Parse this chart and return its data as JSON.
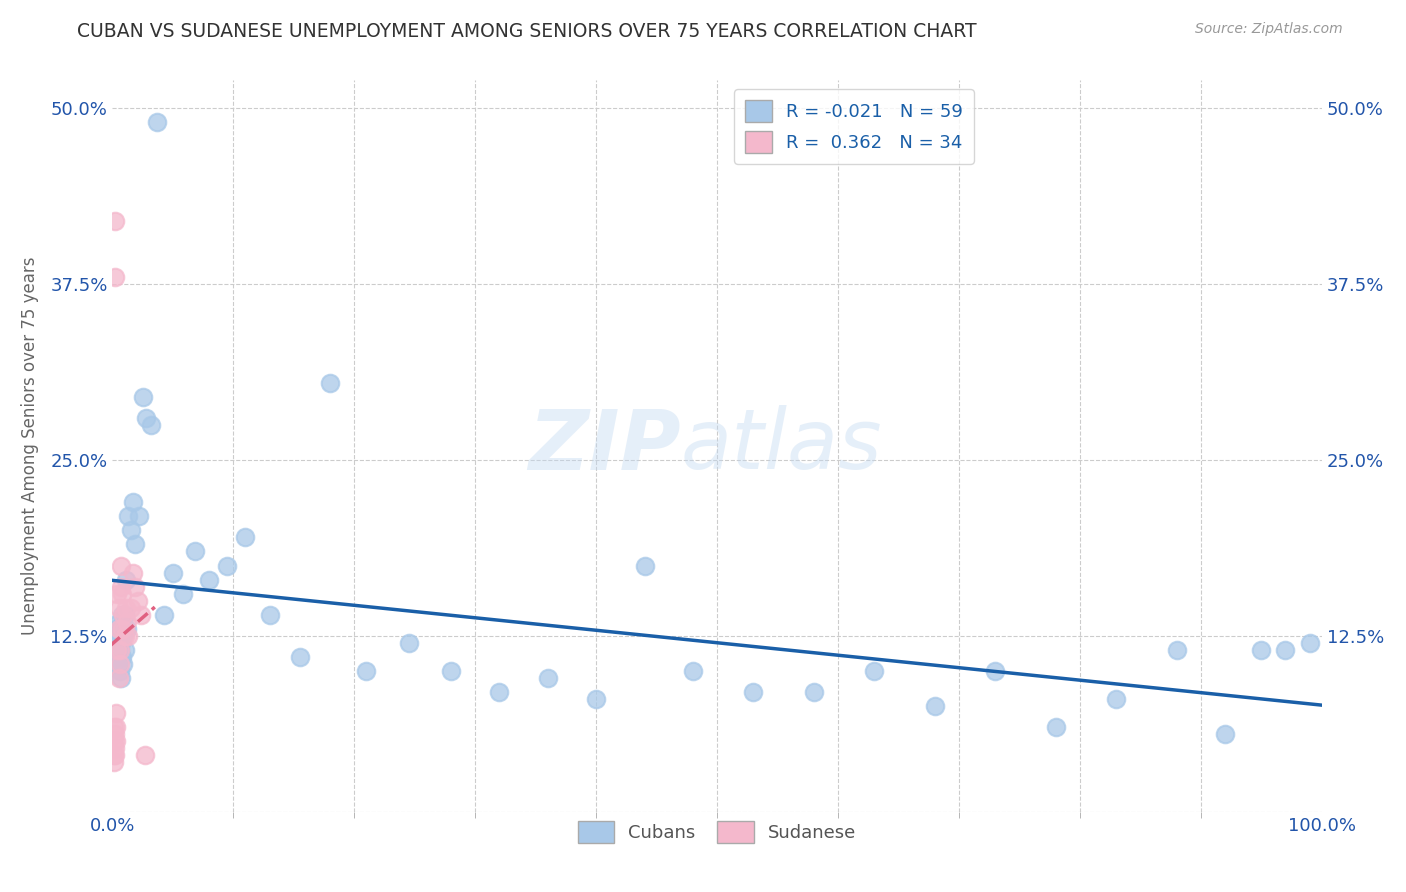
{
  "title": "CUBAN VS SUDANESE UNEMPLOYMENT AMONG SENIORS OVER 75 YEARS CORRELATION CHART",
  "source": "Source: ZipAtlas.com",
  "ylabel": "Unemployment Among Seniors over 75 years",
  "watermark_zip": "ZIP",
  "watermark_atlas": "atlas",
  "cubans_color": "#a8c8e8",
  "sudanese_color": "#f4b8cc",
  "cubans_line_color": "#1a5fa8",
  "sudanese_line_color": "#e06080",
  "background_color": "#ffffff",
  "grid_color": "#cccccc",
  "title_color": "#2255aa",
  "axis_label_color": "#2255aa",
  "source_color": "#999999",
  "legend_cubans_label": "R = -0.021   N = 59",
  "legend_sudanese_label": "R =  0.362   N = 34",
  "cubans_x": [
    0.003,
    0.003,
    0.004,
    0.004,
    0.005,
    0.005,
    0.006,
    0.006,
    0.006,
    0.007,
    0.007,
    0.007,
    0.008,
    0.008,
    0.009,
    0.009,
    0.01,
    0.01,
    0.011,
    0.012,
    0.013,
    0.015,
    0.017,
    0.019,
    0.022,
    0.025,
    0.028,
    0.032,
    0.037,
    0.043,
    0.05,
    0.058,
    0.068,
    0.08,
    0.095,
    0.11,
    0.13,
    0.155,
    0.18,
    0.21,
    0.245,
    0.28,
    0.32,
    0.36,
    0.4,
    0.44,
    0.48,
    0.53,
    0.58,
    0.63,
    0.68,
    0.73,
    0.78,
    0.83,
    0.88,
    0.92,
    0.95,
    0.97,
    0.99
  ],
  "cubans_y": [
    0.13,
    0.115,
    0.125,
    0.11,
    0.105,
    0.135,
    0.115,
    0.125,
    0.1,
    0.12,
    0.095,
    0.13,
    0.11,
    0.14,
    0.105,
    0.125,
    0.115,
    0.14,
    0.165,
    0.13,
    0.21,
    0.2,
    0.22,
    0.19,
    0.21,
    0.295,
    0.28,
    0.275,
    0.49,
    0.14,
    0.17,
    0.155,
    0.185,
    0.165,
    0.175,
    0.195,
    0.14,
    0.11,
    0.305,
    0.1,
    0.12,
    0.1,
    0.085,
    0.095,
    0.08,
    0.175,
    0.1,
    0.085,
    0.085,
    0.1,
    0.075,
    0.1,
    0.06,
    0.08,
    0.115,
    0.055,
    0.115,
    0.115,
    0.12
  ],
  "sudanese_x": [
    0.001,
    0.001,
    0.001,
    0.001,
    0.002,
    0.002,
    0.002,
    0.002,
    0.002,
    0.003,
    0.003,
    0.003,
    0.004,
    0.004,
    0.005,
    0.005,
    0.005,
    0.006,
    0.006,
    0.007,
    0.007,
    0.008,
    0.008,
    0.009,
    0.01,
    0.011,
    0.012,
    0.013,
    0.015,
    0.017,
    0.019,
    0.021,
    0.024,
    0.027
  ],
  "sudanese_y": [
    0.04,
    0.035,
    0.06,
    0.05,
    0.045,
    0.42,
    0.38,
    0.055,
    0.04,
    0.07,
    0.06,
    0.05,
    0.155,
    0.115,
    0.145,
    0.13,
    0.095,
    0.115,
    0.105,
    0.175,
    0.16,
    0.155,
    0.13,
    0.14,
    0.125,
    0.145,
    0.135,
    0.125,
    0.145,
    0.17,
    0.16,
    0.15,
    0.14,
    0.04
  ],
  "xlim": [
    0.0,
    1.0
  ],
  "ylim": [
    0.0,
    0.52
  ],
  "ytick_positions": [
    0.0,
    0.125,
    0.25,
    0.375,
    0.5
  ],
  "ytick_labels": [
    "",
    "12.5%",
    "25.0%",
    "37.5%",
    "50.0%"
  ],
  "xtick_minor_positions": [
    0.1,
    0.2,
    0.3,
    0.4,
    0.5,
    0.6,
    0.7,
    0.8,
    0.9
  ],
  "figsize": [
    14.06,
    8.92
  ],
  "dpi": 100
}
